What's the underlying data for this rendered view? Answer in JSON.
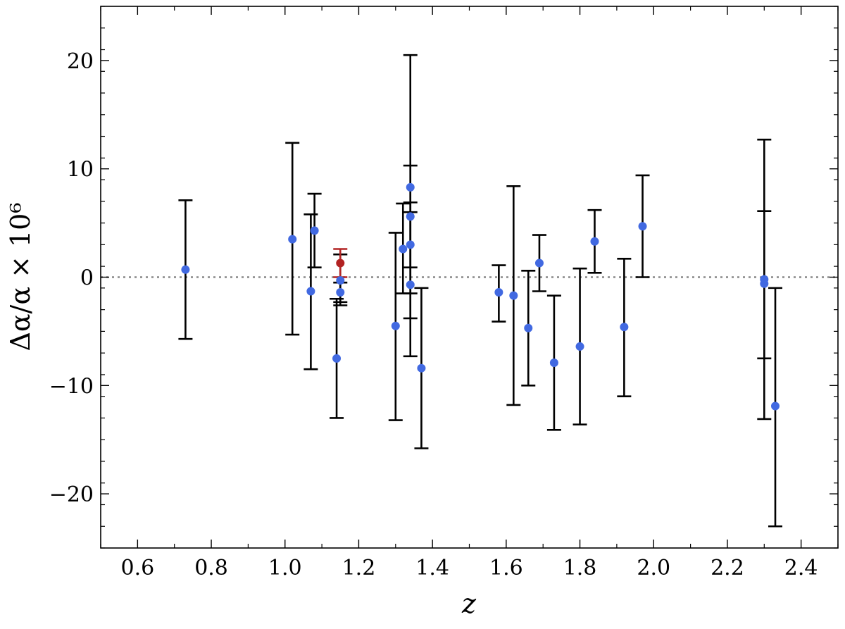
{
  "chart_data": {
    "type": "scatter",
    "xlabel": "z",
    "ylabel": "Δα/α × 10⁶",
    "xlim": [
      0.5,
      2.5
    ],
    "ylim": [
      -25,
      25
    ],
    "x_ticks": [
      0.6,
      0.8,
      1.0,
      1.2,
      1.4,
      1.6,
      1.8,
      2.0,
      2.2,
      2.4
    ],
    "x_tick_labels": [
      "0.6",
      "0.8",
      "1.0",
      "1.2",
      "1.4",
      "1.6",
      "1.8",
      "2.0",
      "2.2",
      "2.4"
    ],
    "y_ticks": [
      -20,
      -10,
      0,
      10,
      20
    ],
    "y_tick_labels": [
      "−20",
      "−10",
      "0",
      "10",
      "20"
    ],
    "x_minor_step": 0.1,
    "y_minor_step": 2,
    "reference_line": {
      "y": 0,
      "style": "dotted",
      "color": "#888888"
    },
    "grid": false,
    "legend": "none",
    "colors": {
      "main_points": "#4169e1",
      "highlight_point": "#b22222",
      "error_bars": "#000000"
    },
    "series": [
      {
        "points": [
          {
            "x": 0.73,
            "y": 0.7,
            "lo": -5.7,
            "hi": 7.1
          },
          {
            "x": 1.02,
            "y": 3.5,
            "lo": -5.3,
            "hi": 12.4
          },
          {
            "x": 1.07,
            "y": -1.3,
            "lo": -8.5,
            "hi": 5.8
          },
          {
            "x": 1.08,
            "y": 4.3,
            "lo": 0.9,
            "hi": 7.7
          },
          {
            "x": 1.14,
            "y": -7.5,
            "lo": -13.0,
            "hi": -2.0
          },
          {
            "x": 1.15,
            "y": -0.3,
            "lo": -2.6,
            "hi": 2.1
          },
          {
            "x": 1.15,
            "y": -1.4,
            "lo": -2.3,
            "hi": -0.5
          },
          {
            "x": 1.3,
            "y": -4.5,
            "lo": -13.2,
            "hi": 4.1
          },
          {
            "x": 1.32,
            "y": 2.6,
            "lo": -1.5,
            "hi": 6.8
          },
          {
            "x": 1.34,
            "y": 8.3,
            "lo": -3.8,
            "hi": 20.5
          },
          {
            "x": 1.34,
            "y": 5.6,
            "lo": 0.9,
            "hi": 10.3
          },
          {
            "x": 1.34,
            "y": 3.0,
            "lo": -7.3,
            "hi": 6.9
          },
          {
            "x": 1.34,
            "y": -0.7,
            "lo": -1.5,
            "hi": 6.0
          },
          {
            "x": 1.37,
            "y": -8.4,
            "lo": -15.8,
            "hi": -1.0
          },
          {
            "x": 1.58,
            "y": -1.4,
            "lo": -4.1,
            "hi": 1.1
          },
          {
            "x": 1.62,
            "y": -1.7,
            "lo": -11.8,
            "hi": 8.4
          },
          {
            "x": 1.66,
            "y": -4.7,
            "lo": -10.0,
            "hi": 0.6
          },
          {
            "x": 1.69,
            "y": 1.3,
            "lo": -1.3,
            "hi": 3.9
          },
          {
            "x": 1.73,
            "y": -7.9,
            "lo": -14.1,
            "hi": -1.7
          },
          {
            "x": 1.8,
            "y": -6.4,
            "lo": -13.6,
            "hi": 0.8
          },
          {
            "x": 1.84,
            "y": 3.3,
            "lo": 0.4,
            "hi": 6.2
          },
          {
            "x": 1.92,
            "y": -4.6,
            "lo": -11.0,
            "hi": 1.7
          },
          {
            "x": 1.97,
            "y": 4.7,
            "lo": 0.0,
            "hi": 9.4
          },
          {
            "x": 2.3,
            "y": -0.2,
            "lo": -7.5,
            "hi": 12.7
          },
          {
            "x": 2.3,
            "y": -0.6,
            "lo": -13.1,
            "hi": 6.1
          },
          {
            "x": 2.33,
            "y": -11.9,
            "lo": -23.0,
            "hi": -1.0
          }
        ]
      },
      {
        "points": [
          {
            "x": 1.15,
            "y": 1.3,
            "lo": 0.0,
            "hi": 2.6
          }
        ]
      }
    ]
  }
}
